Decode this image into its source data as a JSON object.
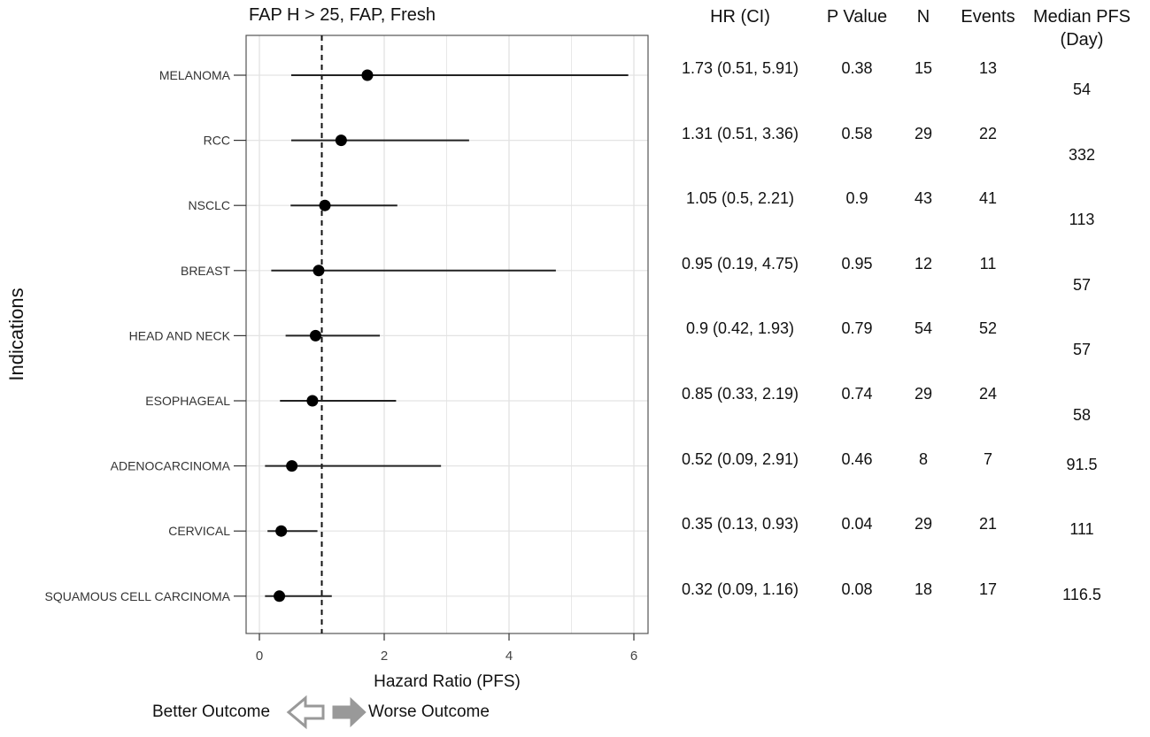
{
  "chart_data": {
    "type": "forest",
    "title": "FAP H > 25, FAP, Fresh",
    "xlabel": "Hazard Ratio (PFS)",
    "ylabel": "Indications",
    "xlim": [
      -0.2,
      6.2
    ],
    "x_ticks": [
      0,
      2,
      4,
      6
    ],
    "reference_line": 1,
    "grid": true,
    "columns": [
      "HR (CI)",
      "P Value",
      "N",
      "Events",
      "Median PFS\n(Day)"
    ],
    "rows": [
      {
        "indication": "MELANOMA",
        "hr": 1.73,
        "lo": 0.51,
        "hi": 5.91,
        "hr_ci": "1.73 (0.51, 5.91)",
        "p": "0.38",
        "n": "15",
        "events": "13",
        "median_pfs": "54"
      },
      {
        "indication": "RCC",
        "hr": 1.31,
        "lo": 0.51,
        "hi": 3.36,
        "hr_ci": "1.31 (0.51, 3.36)",
        "p": "0.58",
        "n": "29",
        "events": "22",
        "median_pfs": "332"
      },
      {
        "indication": "NSCLC",
        "hr": 1.05,
        "lo": 0.5,
        "hi": 2.21,
        "hr_ci": "1.05 (0.5, 2.21)",
        "p": "0.9",
        "n": "43",
        "events": "41",
        "median_pfs": "113"
      },
      {
        "indication": "BREAST",
        "hr": 0.95,
        "lo": 0.19,
        "hi": 4.75,
        "hr_ci": "0.95 (0.19, 4.75)",
        "p": "0.95",
        "n": "12",
        "events": "11",
        "median_pfs": "57"
      },
      {
        "indication": "HEAD AND NECK",
        "hr": 0.9,
        "lo": 0.42,
        "hi": 1.93,
        "hr_ci": "0.9 (0.42, 1.93)",
        "p": "0.79",
        "n": "54",
        "events": "52",
        "median_pfs": "57"
      },
      {
        "indication": "ESOPHAGEAL",
        "hr": 0.85,
        "lo": 0.33,
        "hi": 2.19,
        "hr_ci": "0.85 (0.33, 2.19)",
        "p": "0.74",
        "n": "29",
        "events": "24",
        "median_pfs": "58"
      },
      {
        "indication": "ADENOCARCINOMA",
        "hr": 0.52,
        "lo": 0.09,
        "hi": 2.91,
        "hr_ci": "0.52 (0.09, 2.91)",
        "p": "0.46",
        "n": "8",
        "events": "7",
        "median_pfs": "91.5"
      },
      {
        "indication": "CERVICAL",
        "hr": 0.35,
        "lo": 0.13,
        "hi": 0.93,
        "hr_ci": "0.35 (0.13, 0.93)",
        "p": "0.04",
        "n": "29",
        "events": "21",
        "median_pfs": "111"
      },
      {
        "indication": "SQUAMOUS CELL CARCINOMA",
        "hr": 0.32,
        "lo": 0.09,
        "hi": 1.16,
        "hr_ci": "0.32 (0.09, 1.16)",
        "p": "0.08",
        "n": "18",
        "events": "17",
        "median_pfs": "116.5"
      }
    ],
    "legend": {
      "better": "Better Outcome",
      "worse": "Worse Outcome"
    },
    "colors": {
      "point": "#000000",
      "line": "#222222",
      "grid": "#e3e3e3",
      "frame": "#555555",
      "arrow": "#999999"
    }
  }
}
